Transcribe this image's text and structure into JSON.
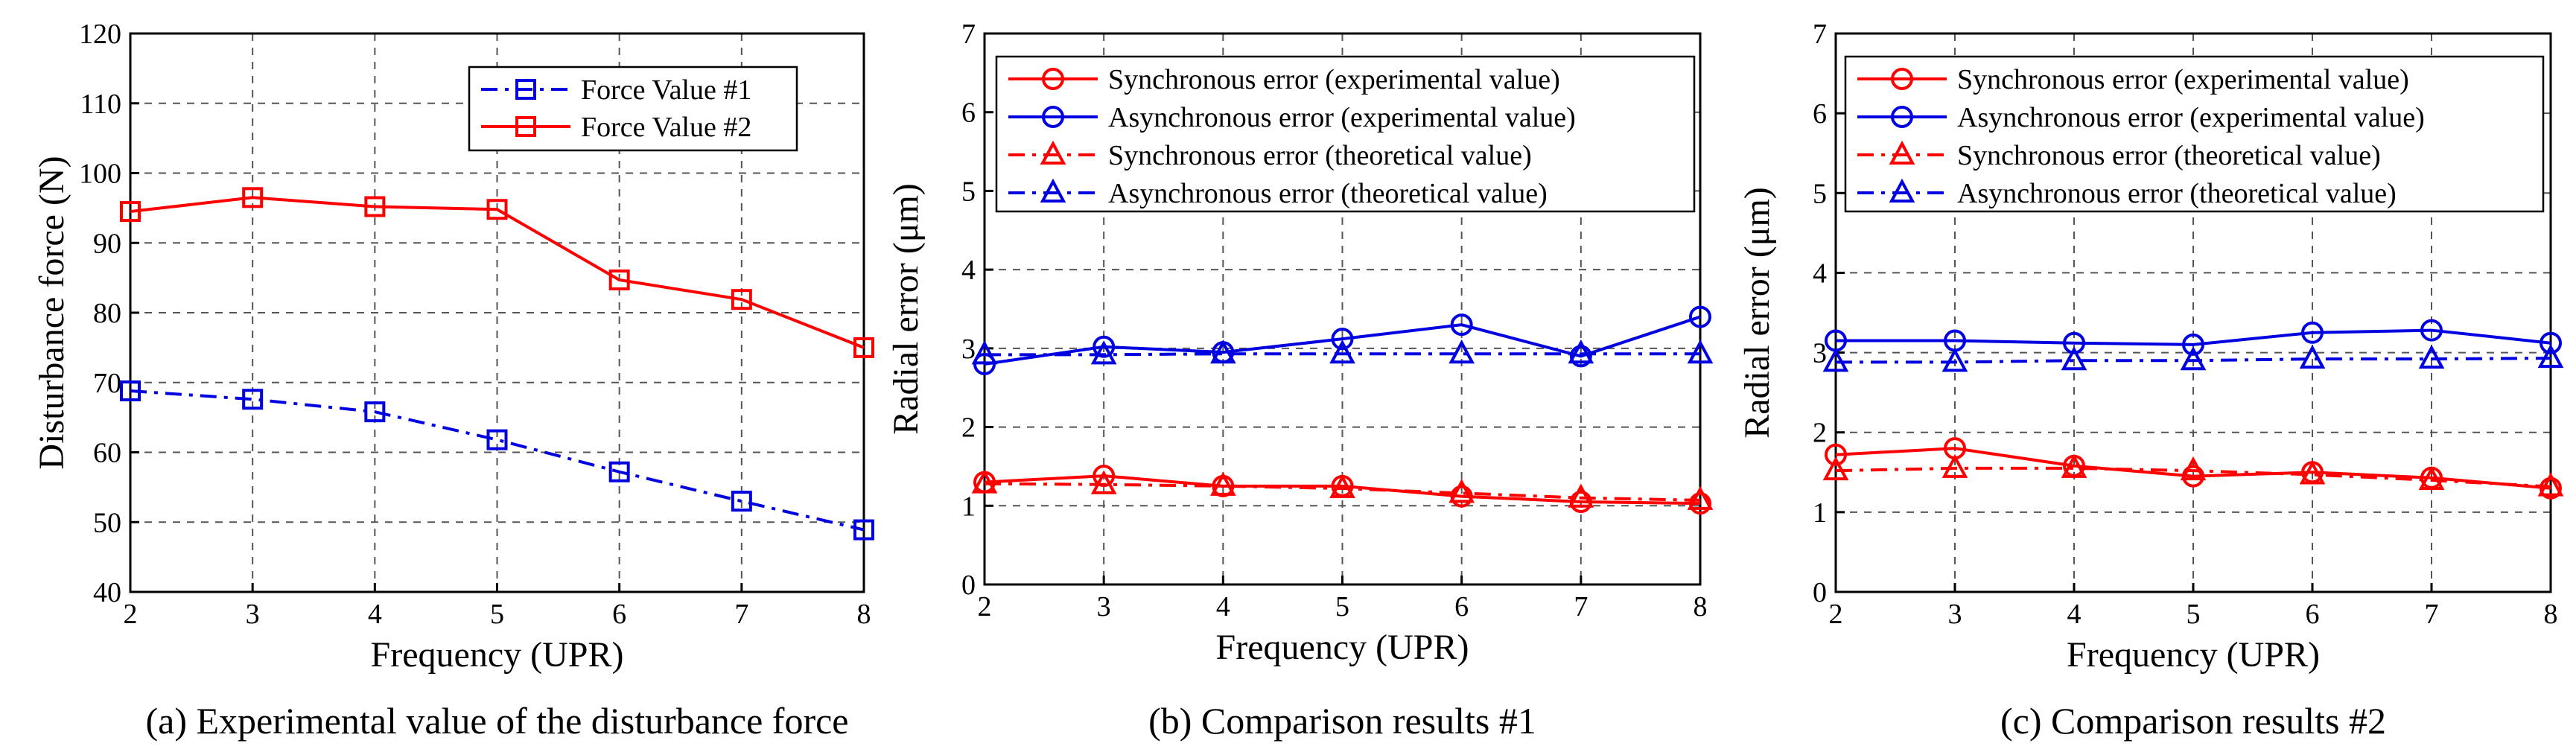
{
  "colors": {
    "red": "#ff0000",
    "blue": "#0000e0",
    "grid": "#555555",
    "axis": "#000000"
  },
  "chart_data": [
    {
      "type": "line",
      "caption": "(a) Experimental value of the disturbance force",
      "xlabel": "Frequency (UPR)",
      "ylabel": "Disturbance force (N)",
      "xlim": [
        2,
        8
      ],
      "ylim": [
        40,
        120
      ],
      "xticks": [
        2,
        3,
        4,
        5,
        6,
        7,
        8
      ],
      "yticks": [
        40,
        50,
        60,
        70,
        80,
        90,
        100,
        110,
        120
      ],
      "grid": true,
      "legend_position": "top-right",
      "x": [
        2,
        3,
        4,
        5,
        6,
        7,
        8
      ],
      "series": [
        {
          "name": "Force Value #1",
          "color": "blue",
          "marker": "square",
          "line": "dashdot",
          "values": [
            68.8,
            67.6,
            65.8,
            61.8,
            57.2,
            53.0,
            48.9
          ]
        },
        {
          "name": "Force Value #2",
          "color": "red",
          "marker": "square",
          "line": "solid",
          "values": [
            94.5,
            96.5,
            95.2,
            94.8,
            84.7,
            81.9,
            75.0
          ]
        }
      ]
    },
    {
      "type": "line",
      "caption": "(b) Comparison results #1",
      "xlabel": "Frequency (UPR)",
      "ylabel": "Radial error (μm)",
      "xlim": [
        2,
        8
      ],
      "ylim": [
        0,
        7
      ],
      "xticks": [
        2,
        3,
        4,
        5,
        6,
        7,
        8
      ],
      "yticks": [
        0,
        1,
        2,
        3,
        4,
        5,
        6,
        7
      ],
      "grid": true,
      "legend_position": "top",
      "x": [
        2,
        3,
        4,
        5,
        6,
        7,
        8
      ],
      "series": [
        {
          "name": "Synchronous error (experimental value)",
          "color": "red",
          "marker": "circle",
          "line": "solid",
          "values": [
            1.3,
            1.38,
            1.25,
            1.25,
            1.12,
            1.05,
            1.03
          ]
        },
        {
          "name": "Asynchronous error (experimental value)",
          "color": "blue",
          "marker": "circle",
          "line": "solid",
          "values": [
            2.8,
            3.02,
            2.95,
            3.12,
            3.3,
            2.9,
            3.4
          ]
        },
        {
          "name": "Synchronous error (theoretical value)",
          "color": "red",
          "marker": "triangle",
          "line": "dashdot",
          "values": [
            1.28,
            1.27,
            1.25,
            1.22,
            1.16,
            1.1,
            1.07
          ]
        },
        {
          "name": "Asynchronous error (theoretical value)",
          "color": "blue",
          "marker": "triangle",
          "line": "dashdot",
          "values": [
            2.92,
            2.92,
            2.93,
            2.93,
            2.93,
            2.93,
            2.93
          ]
        }
      ]
    },
    {
      "type": "line",
      "caption": "(c) Comparison results #2",
      "xlabel": "Frequency (UPR)",
      "ylabel": "Radial error (μm)",
      "xlim": [
        2,
        8
      ],
      "ylim": [
        0,
        7
      ],
      "xticks": [
        2,
        3,
        4,
        5,
        6,
        7,
        8
      ],
      "yticks": [
        0,
        1,
        2,
        3,
        4,
        5,
        6,
        7
      ],
      "grid": true,
      "legend_position": "top",
      "x": [
        2,
        3,
        4,
        5,
        6,
        7,
        8
      ],
      "series": [
        {
          "name": "Synchronous error (experimental value)",
          "color": "red",
          "marker": "circle",
          "line": "solid",
          "values": [
            1.72,
            1.8,
            1.58,
            1.45,
            1.5,
            1.43,
            1.3
          ]
        },
        {
          "name": "Asynchronous error (experimental value)",
          "color": "blue",
          "marker": "circle",
          "line": "solid",
          "values": [
            3.15,
            3.15,
            3.12,
            3.1,
            3.25,
            3.28,
            3.12
          ]
        },
        {
          "name": "Synchronous error (theoretical value)",
          "color": "red",
          "marker": "triangle",
          "line": "dashdot",
          "values": [
            1.52,
            1.55,
            1.55,
            1.52,
            1.47,
            1.4,
            1.32
          ]
        },
        {
          "name": "Asynchronous error (theoretical value)",
          "color": "blue",
          "marker": "triangle",
          "line": "dashdot",
          "values": [
            2.88,
            2.88,
            2.9,
            2.9,
            2.92,
            2.92,
            2.93
          ]
        }
      ]
    }
  ]
}
